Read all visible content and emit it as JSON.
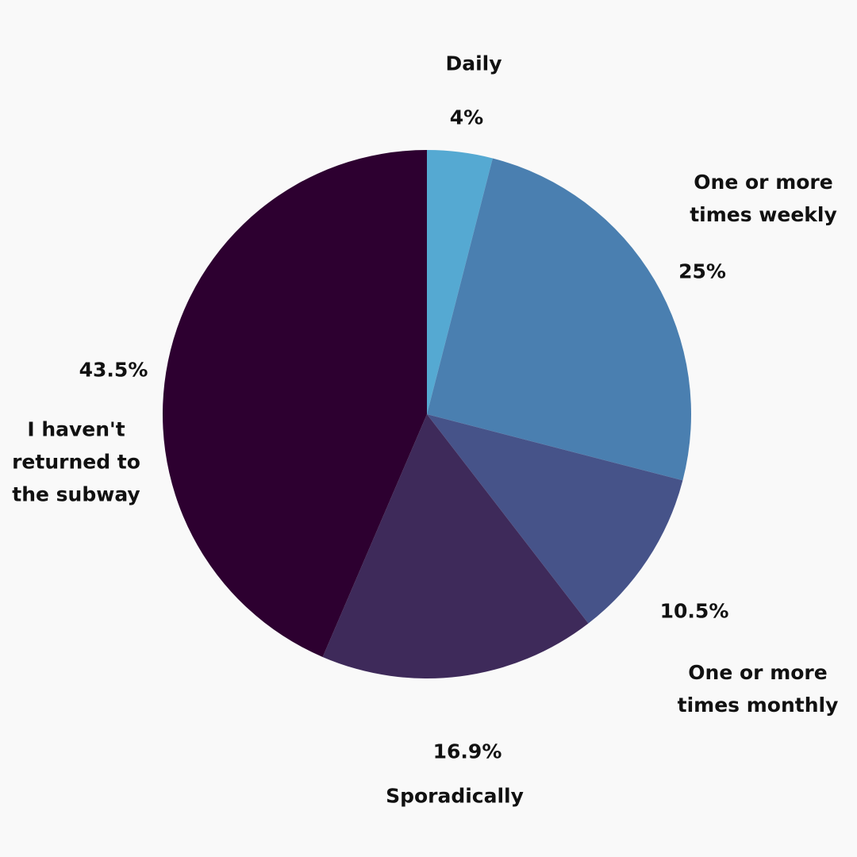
{
  "chart_data": {
    "type": "pie",
    "categories": [
      "Daily",
      "One or more times weekly",
      "One or more times monthly",
      "Sporadically",
      "I haven't returned to the subway"
    ],
    "values": [
      4,
      25,
      10.5,
      16.9,
      43.5
    ],
    "value_labels": [
      "4%",
      "25%",
      "10.5%",
      "16.9%",
      "43.5%"
    ],
    "colors": [
      "#55a9d2",
      "#4a7fb0",
      "#465389",
      "#3e2a5a",
      "#2d0030"
    ]
  }
}
